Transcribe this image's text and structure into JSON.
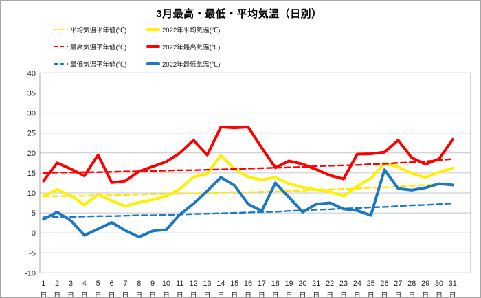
{
  "chart_data": {
    "type": "line",
    "title": "3月最高・最低・平均気温（日別）",
    "x_categories": [
      "1",
      "2",
      "3",
      "4",
      "5",
      "6",
      "7",
      "8",
      "9",
      "10",
      "11",
      "12",
      "13",
      "14",
      "15",
      "16",
      "17",
      "18",
      "19",
      "20",
      "21",
      "22",
      "23",
      "24",
      "25",
      "26",
      "27",
      "28",
      "29",
      "30",
      "31"
    ],
    "x_unit_label": "日",
    "ylim": [
      -10,
      40
    ],
    "y_ticks": [
      40,
      35,
      30,
      25,
      20,
      15,
      10,
      5,
      0,
      -5,
      -10
    ],
    "grid": true,
    "legend_position": "top-left",
    "series": [
      {
        "name": "平均気温平年値(℃)",
        "color": "#ffe800",
        "style": "dashed",
        "values": [
          9.1,
          9.2,
          9.2,
          9.3,
          9.4,
          9.4,
          9.5,
          9.6,
          9.7,
          9.7,
          9.8,
          9.9,
          10.0,
          10.1,
          10.2,
          10.2,
          10.3,
          10.4,
          10.5,
          10.6,
          10.8,
          10.9,
          11.0,
          11.1,
          11.3,
          11.4,
          11.6,
          11.8,
          12.0,
          12.2,
          12.4
        ]
      },
      {
        "name": "2022年平均気温(℃)",
        "color": "#ffef00",
        "style": "solid",
        "values": [
          9.2,
          10.9,
          9.3,
          7.0,
          9.6,
          8.0,
          6.7,
          7.6,
          8.3,
          9.2,
          11.0,
          14.0,
          14.8,
          19.4,
          16.0,
          14.0,
          13.3,
          13.9,
          12.3,
          11.4,
          10.8,
          10.3,
          9.2,
          11.7,
          13.7,
          17.4,
          16.5,
          14.9,
          13.9,
          15.2,
          16.2
        ]
      },
      {
        "name": "最高気温平年値(℃)",
        "color": "#ff0000",
        "style": "dashed",
        "values": [
          15.0,
          15.1,
          15.1,
          15.2,
          15.2,
          15.3,
          15.4,
          15.4,
          15.5,
          15.6,
          15.7,
          15.7,
          15.8,
          15.9,
          16.0,
          16.1,
          16.2,
          16.3,
          16.4,
          16.5,
          16.7,
          16.8,
          16.9,
          17.0,
          17.2,
          17.3,
          17.5,
          17.7,
          17.9,
          18.2,
          18.5
        ]
      },
      {
        "name": "2022年最高気温(℃)",
        "color": "#ff0000",
        "style": "solid",
        "values": [
          13.0,
          17.5,
          16.0,
          14.3,
          19.5,
          12.6,
          13.0,
          15.4,
          16.6,
          17.8,
          20.0,
          23.2,
          19.5,
          26.5,
          26.3,
          26.5,
          21.3,
          16.3,
          18.0,
          17.2,
          15.9,
          14.4,
          13.5,
          19.7,
          19.8,
          20.2,
          23.2,
          18.8,
          17.2,
          18.5,
          23.4
        ]
      },
      {
        "name": "最低気温平年値(℃)",
        "color": "#1b78c4",
        "style": "dashed",
        "values": [
          3.9,
          4.0,
          4.0,
          4.1,
          4.2,
          4.2,
          4.3,
          4.4,
          4.4,
          4.5,
          4.6,
          4.7,
          4.8,
          4.9,
          5.0,
          5.1,
          5.2,
          5.3,
          5.5,
          5.6,
          5.8,
          5.9,
          6.1,
          6.2,
          6.4,
          6.5,
          6.7,
          6.9,
          7.0,
          7.2,
          7.4
        ]
      },
      {
        "name": "2022年最低気温(℃)",
        "color": "#1b78c4",
        "style": "solid",
        "values": [
          3.4,
          5.2,
          3.1,
          -0.6,
          1.0,
          2.6,
          0.6,
          -1.0,
          0.5,
          0.8,
          4.6,
          7.3,
          10.5,
          13.9,
          11.9,
          7.2,
          5.5,
          12.5,
          8.9,
          5.2,
          7.2,
          7.5,
          6.0,
          5.6,
          4.4,
          15.8,
          11.1,
          10.7,
          11.3,
          12.3,
          12.0
        ]
      }
    ],
    "colors": {
      "gridline": "#c6c6c6",
      "plot_border": "#a8a8a8",
      "axis_label": "#26262e"
    }
  }
}
